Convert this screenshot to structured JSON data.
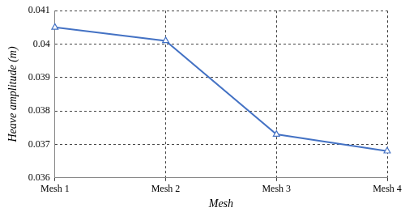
{
  "chart_data": {
    "type": "line",
    "x_label": "Mesh",
    "y_label": "Heave amplitude (m)",
    "categories": [
      "Mesh 1",
      "Mesh 2",
      "Mesh 3",
      "Mesh 4"
    ],
    "values": [
      0.0405,
      0.0401,
      0.0373,
      0.0368
    ],
    "color": "#4472c4",
    "marker": "triangle",
    "ylim": [
      0.036,
      0.041
    ],
    "yticks": [
      0.036,
      0.037,
      0.038,
      0.039,
      0.04,
      0.041
    ],
    "grid": true
  }
}
